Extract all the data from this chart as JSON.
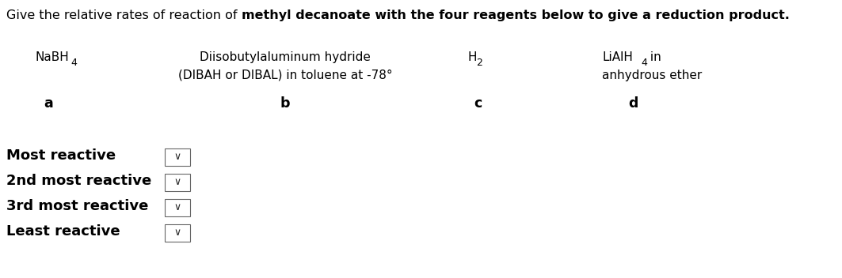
{
  "title_normal": "Give the relative rates of reaction of ",
  "title_bold": "methyl decanoate with the four reagents below to give a reduction product.",
  "bg_color": "#ffffff",
  "text_color": "#000000",
  "title_fontsize": 11.5,
  "reagent_fontsize": 11.0,
  "label_fontsize": 12.5,
  "row_fontsize": 13.0,
  "rows": [
    "Most reactive",
    "2nd most reactive",
    "3rd most reactive",
    "Least reactive"
  ]
}
